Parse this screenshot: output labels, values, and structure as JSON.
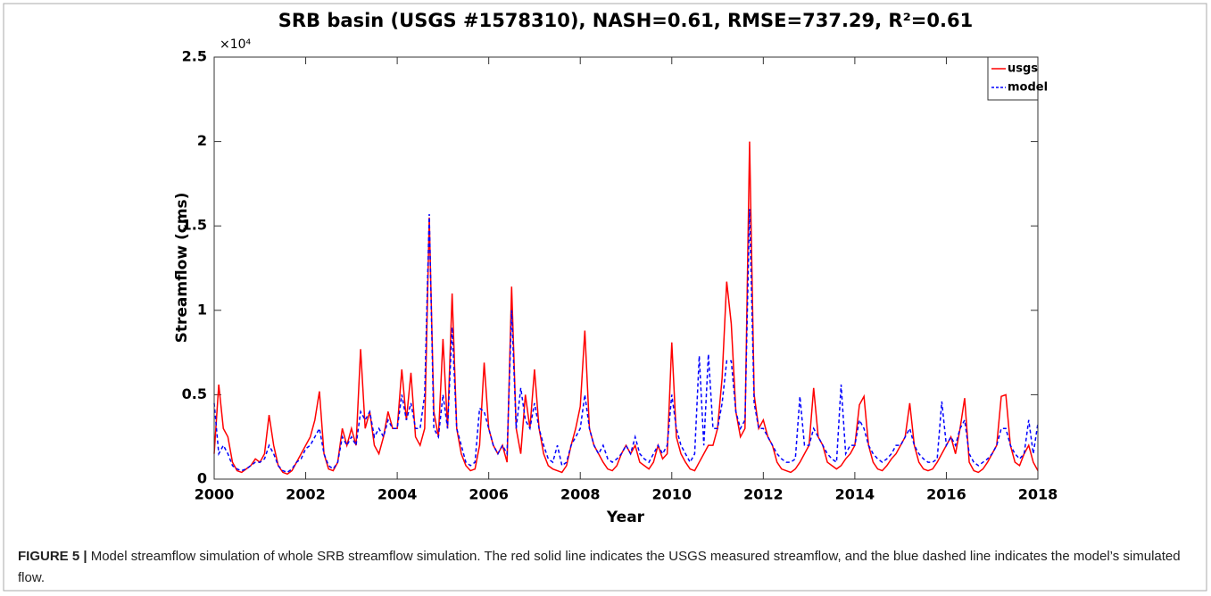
{
  "chart_data": {
    "type": "line",
    "title": "SRB basin (USGS #1578310), NASH=0.61, RMSE=737.29, R²=0.61",
    "y_multiplier": "×10⁴",
    "xlabel": "Year",
    "ylabel": "Streamflow (cms)",
    "x": [
      2000,
      2000.1,
      2000.2,
      2000.3,
      2000.4,
      2000.5,
      2000.6,
      2000.7,
      2000.8,
      2000.9,
      2001,
      2001.1,
      2001.2,
      2001.3,
      2001.4,
      2001.5,
      2001.6,
      2001.7,
      2001.8,
      2001.9,
      2002,
      2002.1,
      2002.2,
      2002.3,
      2002.4,
      2002.5,
      2002.6,
      2002.7,
      2002.8,
      2002.9,
      2003,
      2003.1,
      2003.2,
      2003.3,
      2003.4,
      2003.5,
      2003.6,
      2003.7,
      2003.8,
      2003.9,
      2004,
      2004.1,
      2004.2,
      2004.3,
      2004.4,
      2004.5,
      2004.6,
      2004.7,
      2004.8,
      2004.9,
      2005,
      2005.1,
      2005.2,
      2005.3,
      2005.4,
      2005.5,
      2005.6,
      2005.7,
      2005.8,
      2005.9,
      2006,
      2006.1,
      2006.2,
      2006.3,
      2006.4,
      2006.5,
      2006.6,
      2006.7,
      2006.8,
      2006.9,
      2007,
      2007.1,
      2007.2,
      2007.3,
      2007.4,
      2007.5,
      2007.6,
      2007.7,
      2007.8,
      2007.9,
      2008,
      2008.1,
      2008.2,
      2008.3,
      2008.4,
      2008.5,
      2008.6,
      2008.7,
      2008.8,
      2008.9,
      2009,
      2009.1,
      2009.2,
      2009.3,
      2009.4,
      2009.5,
      2009.6,
      2009.7,
      2009.8,
      2009.9,
      2010,
      2010.1,
      2010.2,
      2010.3,
      2010.4,
      2010.5,
      2010.6,
      2010.7,
      2010.8,
      2010.9,
      2011,
      2011.1,
      2011.2,
      2011.3,
      2011.4,
      2011.5,
      2011.6,
      2011.7,
      2011.8,
      2011.9,
      2012,
      2012.1,
      2012.2,
      2012.3,
      2012.4,
      2012.5,
      2012.6,
      2012.7,
      2012.8,
      2012.9,
      2013,
      2013.1,
      2013.2,
      2013.3,
      2013.4,
      2013.5,
      2013.6,
      2013.7,
      2013.8,
      2013.9,
      2014,
      2014.1,
      2014.2,
      2014.3,
      2014.4,
      2014.5,
      2014.6,
      2014.7,
      2014.8,
      2014.9,
      2015,
      2015.1,
      2015.2,
      2015.3,
      2015.4,
      2015.5,
      2015.6,
      2015.7,
      2015.8,
      2015.9,
      2016,
      2016.1,
      2016.2,
      2016.3,
      2016.4,
      2016.5,
      2016.6,
      2016.7,
      2016.8,
      2016.9,
      2017,
      2017.1,
      2017.2,
      2017.3,
      2017.4,
      2017.5,
      2017.6,
      2017.7,
      2017.8,
      2017.9,
      2018
    ],
    "series": [
      {
        "name": "usgs",
        "color": "#ff0000",
        "dashed": false,
        "values": [
          0.15,
          0.56,
          0.3,
          0.25,
          0.1,
          0.05,
          0.04,
          0.06,
          0.08,
          0.12,
          0.1,
          0.15,
          0.38,
          0.2,
          0.08,
          0.04,
          0.03,
          0.05,
          0.1,
          0.15,
          0.2,
          0.25,
          0.35,
          0.52,
          0.15,
          0.06,
          0.05,
          0.1,
          0.3,
          0.2,
          0.3,
          0.2,
          0.77,
          0.3,
          0.4,
          0.2,
          0.15,
          0.25,
          0.4,
          0.3,
          0.3,
          0.65,
          0.35,
          0.63,
          0.25,
          0.2,
          0.3,
          1.55,
          0.4,
          0.25,
          0.83,
          0.3,
          1.1,
          0.3,
          0.15,
          0.08,
          0.05,
          0.06,
          0.2,
          0.69,
          0.3,
          0.2,
          0.15,
          0.2,
          0.1,
          1.14,
          0.3,
          0.15,
          0.5,
          0.3,
          0.65,
          0.3,
          0.15,
          0.08,
          0.06,
          0.05,
          0.04,
          0.08,
          0.2,
          0.3,
          0.43,
          0.88,
          0.3,
          0.2,
          0.15,
          0.1,
          0.06,
          0.05,
          0.08,
          0.15,
          0.2,
          0.15,
          0.2,
          0.1,
          0.08,
          0.06,
          0.1,
          0.2,
          0.12,
          0.15,
          0.81,
          0.25,
          0.15,
          0.1,
          0.06,
          0.05,
          0.1,
          0.15,
          0.2,
          0.2,
          0.3,
          0.6,
          1.17,
          0.92,
          0.4,
          0.25,
          0.3,
          2.0,
          0.5,
          0.3,
          0.35,
          0.25,
          0.2,
          0.1,
          0.06,
          0.05,
          0.04,
          0.06,
          0.1,
          0.15,
          0.2,
          0.54,
          0.25,
          0.2,
          0.1,
          0.08,
          0.06,
          0.08,
          0.12,
          0.15,
          0.2,
          0.44,
          0.49,
          0.2,
          0.1,
          0.06,
          0.05,
          0.08,
          0.12,
          0.15,
          0.2,
          0.25,
          0.45,
          0.2,
          0.1,
          0.06,
          0.05,
          0.06,
          0.1,
          0.15,
          0.2,
          0.25,
          0.15,
          0.3,
          0.48,
          0.1,
          0.05,
          0.04,
          0.06,
          0.1,
          0.15,
          0.2,
          0.49,
          0.5,
          0.2,
          0.1,
          0.08,
          0.15,
          0.2,
          0.1,
          0.05
        ]
      },
      {
        "name": "model",
        "color": "#0000ff",
        "dashed": true,
        "values": [
          0.45,
          0.15,
          0.2,
          0.15,
          0.08,
          0.06,
          0.05,
          0.06,
          0.08,
          0.1,
          0.1,
          0.12,
          0.2,
          0.15,
          0.08,
          0.05,
          0.04,
          0.06,
          0.1,
          0.12,
          0.18,
          0.2,
          0.25,
          0.3,
          0.15,
          0.08,
          0.06,
          0.1,
          0.25,
          0.2,
          0.25,
          0.2,
          0.4,
          0.35,
          0.4,
          0.25,
          0.3,
          0.25,
          0.35,
          0.3,
          0.3,
          0.5,
          0.35,
          0.45,
          0.3,
          0.3,
          0.5,
          1.57,
          0.3,
          0.25,
          0.5,
          0.3,
          0.9,
          0.3,
          0.2,
          0.1,
          0.08,
          0.1,
          0.42,
          0.4,
          0.3,
          0.2,
          0.15,
          0.2,
          0.15,
          1.0,
          0.3,
          0.54,
          0.35,
          0.3,
          0.45,
          0.3,
          0.2,
          0.12,
          0.1,
          0.2,
          0.08,
          0.1,
          0.2,
          0.25,
          0.3,
          0.5,
          0.3,
          0.2,
          0.15,
          0.2,
          0.12,
          0.1,
          0.12,
          0.15,
          0.2,
          0.15,
          0.25,
          0.15,
          0.12,
          0.1,
          0.15,
          0.2,
          0.15,
          0.2,
          0.5,
          0.3,
          0.2,
          0.15,
          0.1,
          0.15,
          0.73,
          0.2,
          0.74,
          0.3,
          0.3,
          0.45,
          0.7,
          0.7,
          0.4,
          0.3,
          0.35,
          1.6,
          0.45,
          0.3,
          0.3,
          0.25,
          0.2,
          0.15,
          0.12,
          0.1,
          0.1,
          0.12,
          0.49,
          0.2,
          0.2,
          0.3,
          0.25,
          0.2,
          0.15,
          0.12,
          0.1,
          0.56,
          0.15,
          0.2,
          0.2,
          0.35,
          0.3,
          0.2,
          0.15,
          0.12,
          0.1,
          0.12,
          0.15,
          0.2,
          0.2,
          0.25,
          0.3,
          0.2,
          0.15,
          0.12,
          0.1,
          0.1,
          0.12,
          0.46,
          0.2,
          0.25,
          0.2,
          0.3,
          0.35,
          0.15,
          0.1,
          0.08,
          0.1,
          0.12,
          0.15,
          0.2,
          0.3,
          0.3,
          0.2,
          0.15,
          0.12,
          0.15,
          0.35,
          0.15,
          0.33
        ]
      }
    ],
    "xlim": [
      2000,
      2018
    ],
    "xticks": [
      2000,
      2002,
      2004,
      2006,
      2008,
      2010,
      2012,
      2014,
      2016,
      2018
    ],
    "ylim": [
      0,
      2.5
    ],
    "yticks": [
      0,
      0.5,
      1,
      1.5,
      2,
      2.5
    ],
    "legend": "upper-right"
  },
  "caption": {
    "label": "FIGURE 5 |",
    "text": "Model streamflow simulation of whole SRB streamflow simulation. The red solid line indicates the USGS measured streamflow, and the blue dashed line indicates the model’s simulated flow."
  }
}
